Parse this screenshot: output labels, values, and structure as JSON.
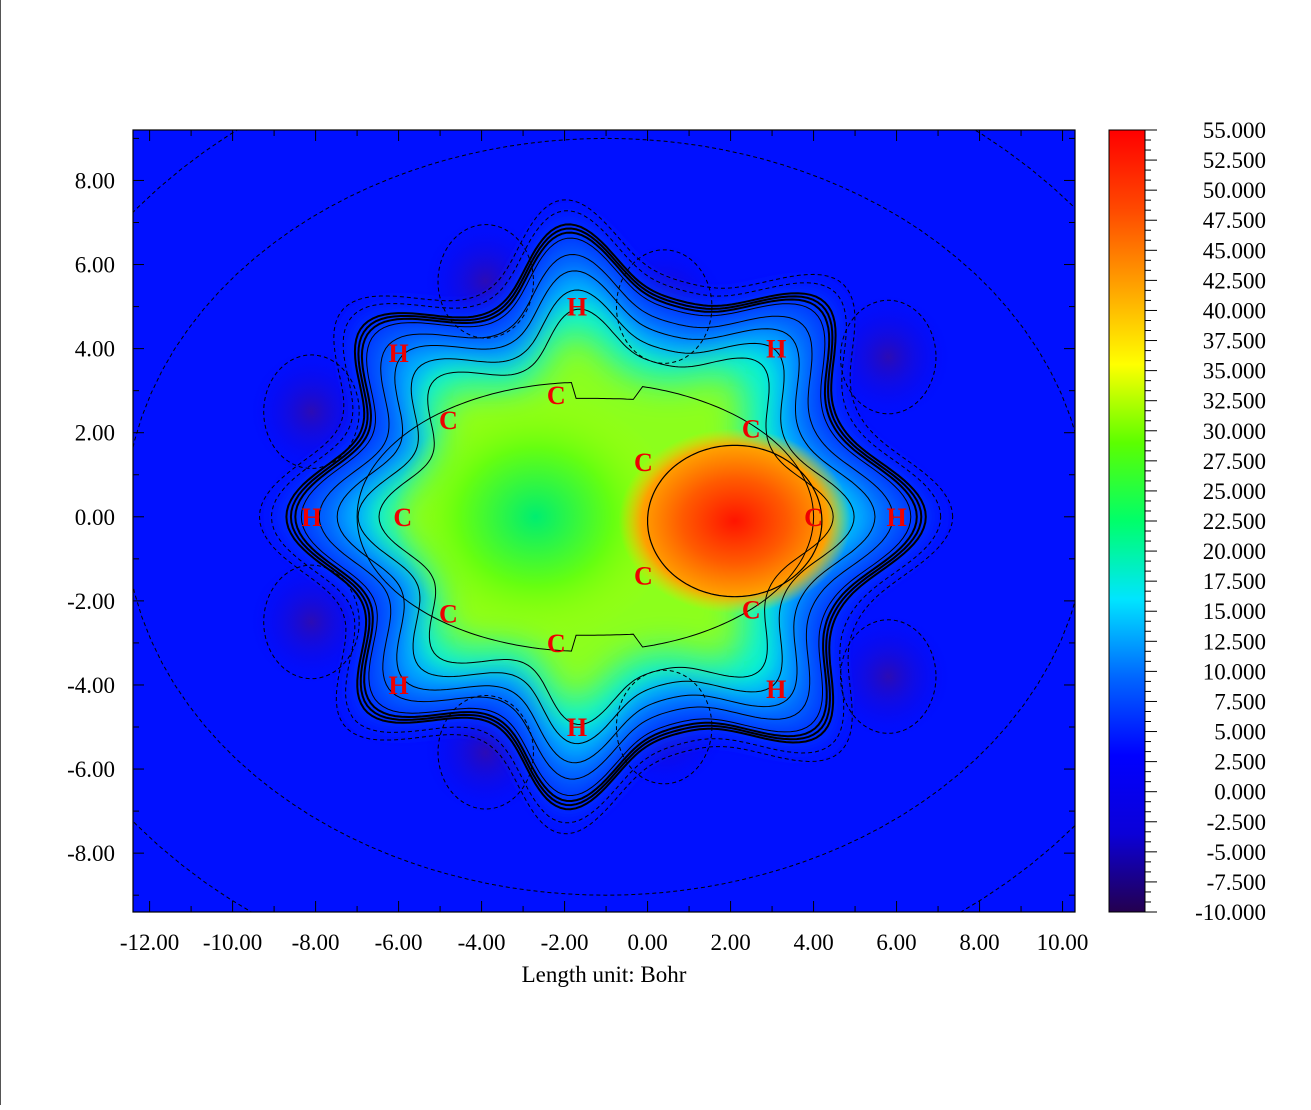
{
  "chart_data": {
    "type": "heatmap",
    "title": "",
    "xlabel": "Length unit: Bohr",
    "ylabel": "",
    "xlim": [
      -12.4,
      10.3
    ],
    "ylim": [
      -9.4,
      9.2
    ],
    "x_ticks": [
      -12.0,
      -10.0,
      -8.0,
      -6.0,
      -4.0,
      -2.0,
      0.0,
      2.0,
      4.0,
      6.0,
      8.0,
      10.0
    ],
    "x_tick_labels": [
      "-12.00",
      "-10.00",
      "-8.00",
      "-6.00",
      "-4.00",
      "-2.00",
      "0.00",
      "2.00",
      "4.00",
      "6.00",
      "8.00",
      "10.00"
    ],
    "y_ticks": [
      8.0,
      6.0,
      4.0,
      2.0,
      0.0,
      -2.0,
      -4.0,
      -6.0,
      -8.0
    ],
    "y_tick_labels": [
      "8.00",
      "6.00",
      "4.00",
      "2.00",
      "0.00",
      "-2.00",
      "-4.00",
      "-6.00",
      "-8.00"
    ],
    "colorbar": {
      "min": -10.0,
      "max": 55.0,
      "colors": [
        "#24004f",
        "#0b00d8",
        "#0000ff",
        "#0066ff",
        "#00e5ff",
        "#00ff6a",
        "#5cff00",
        "#ffff00",
        "#ffa200",
        "#ff4800",
        "#ff0000"
      ],
      "tick_values": [
        55.0,
        52.5,
        50.0,
        47.5,
        45.0,
        42.5,
        40.0,
        37.5,
        35.0,
        32.5,
        30.0,
        27.5,
        25.0,
        22.5,
        20.0,
        17.5,
        15.0,
        12.5,
        10.0,
        7.5,
        5.0,
        2.5,
        0.0,
        -2.5,
        -5.0,
        -7.5,
        -10.0
      ],
      "tick_labels": [
        "55.000",
        "52.500",
        "50.000",
        "47.500",
        "45.000",
        "42.500",
        "40.000",
        "37.500",
        "35.000",
        "32.500",
        "30.000",
        "27.500",
        "25.000",
        "22.500",
        "20.000",
        "17.500",
        "15.000",
        "12.500",
        "10.000",
        "7.500",
        "5.000",
        "2.500",
        "0.000",
        "-2.500",
        "-5.000",
        "-7.500",
        "-10.000"
      ]
    },
    "atoms": [
      {
        "label": "H",
        "x": -1.7,
        "y": 5.0
      },
      {
        "label": "H",
        "x": 3.1,
        "y": 4.0
      },
      {
        "label": "H",
        "x": -6.0,
        "y": 3.9
      },
      {
        "label": "C",
        "x": -2.2,
        "y": 2.9
      },
      {
        "label": "C",
        "x": -4.8,
        "y": 2.3
      },
      {
        "label": "C",
        "x": 2.5,
        "y": 2.1
      },
      {
        "label": "C",
        "x": -0.1,
        "y": 1.3
      },
      {
        "label": "H",
        "x": -8.1,
        "y": 0.0
      },
      {
        "label": "C",
        "x": -5.9,
        "y": 0.0
      },
      {
        "label": "C",
        "x": 4.0,
        "y": 0.0
      },
      {
        "label": "H",
        "x": 6.0,
        "y": 0.0
      },
      {
        "label": "C",
        "x": -0.1,
        "y": -1.4
      },
      {
        "label": "C",
        "x": -4.8,
        "y": -2.3
      },
      {
        "label": "C",
        "x": 2.5,
        "y": -2.2
      },
      {
        "label": "C",
        "x": -2.2,
        "y": -3.0
      },
      {
        "label": "H",
        "x": -6.0,
        "y": -4.0
      },
      {
        "label": "H",
        "x": 3.1,
        "y": -4.1
      },
      {
        "label": "H",
        "x": -1.7,
        "y": -5.0
      }
    ],
    "field_maxima": [
      {
        "x": 2.1,
        "y": -0.1,
        "value": 52
      },
      {
        "x": -2.7,
        "y": 0.0,
        "value": 27
      }
    ],
    "field_minima": [
      {
        "x": 0.4,
        "y": 5.0,
        "value": -6
      },
      {
        "x": 0.4,
        "y": -5.0,
        "value": -6
      },
      {
        "x": -3.9,
        "y": 5.6,
        "value": -4
      },
      {
        "x": -3.9,
        "y": -5.6,
        "value": -4
      },
      {
        "x": 5.8,
        "y": 3.8,
        "value": -4
      },
      {
        "x": 5.8,
        "y": -3.8,
        "value": -4
      },
      {
        "x": -8.1,
        "y": 2.5,
        "value": -4
      },
      {
        "x": -8.1,
        "y": -2.5,
        "value": -4
      }
    ],
    "grid": false,
    "legend": "colorbar-right"
  }
}
